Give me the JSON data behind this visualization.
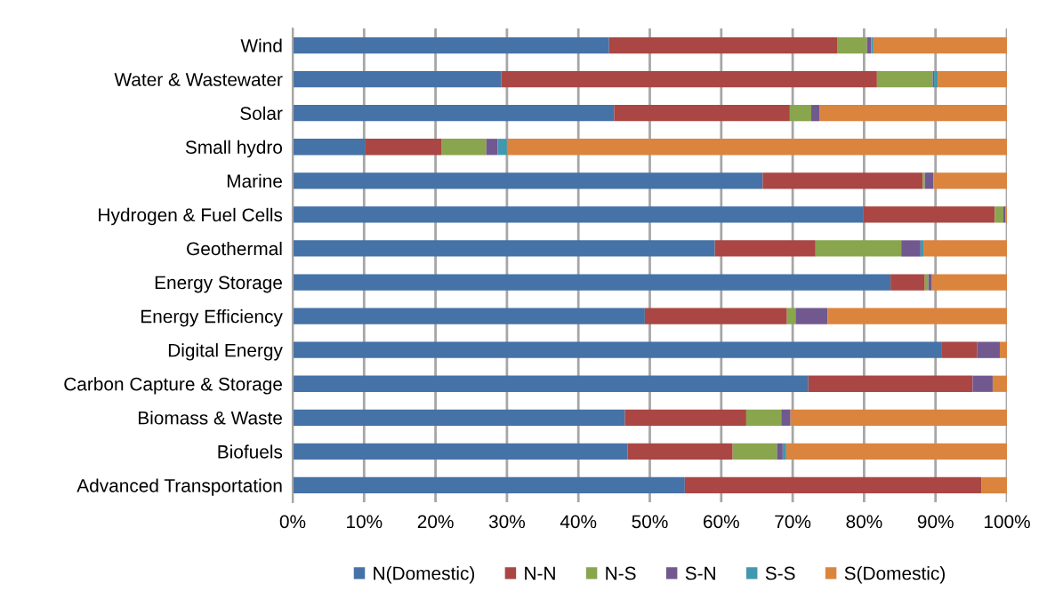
{
  "chart_data": {
    "type": "bar",
    "orientation": "horizontal",
    "stacked": true,
    "categories": [
      "Wind",
      "Water & Wastewater",
      "Solar",
      "Small hydro",
      "Marine",
      "Hydrogen & Fuel Cells",
      "Geothermal",
      "Energy Storage",
      "Energy Efficiency",
      "Digital Energy",
      "Carbon Capture & Storage",
      "Biomass & Waste",
      "Biofuels",
      "Advanced Transportation"
    ],
    "series": [
      {
        "name": "N(Domestic)",
        "color": "#4572a7",
        "values": [
          44.3,
          29.2,
          45.0,
          10.2,
          65.8,
          79.9,
          59.1,
          83.7,
          49.3,
          90.8,
          72.2,
          46.5,
          46.9,
          54.9
        ]
      },
      {
        "name": "N-N",
        "color": "#aa4643",
        "values": [
          32.0,
          52.6,
          24.6,
          10.6,
          22.4,
          18.4,
          14.1,
          4.8,
          19.9,
          5.0,
          23.0,
          17.0,
          14.7,
          41.5
        ]
      },
      {
        "name": "N-S",
        "color": "#89a54e",
        "values": [
          4.1,
          7.8,
          3.0,
          6.3,
          0.3,
          1.2,
          12.0,
          0.5,
          1.2,
          0,
          0,
          4.9,
          6.2,
          0
        ]
      },
      {
        "name": "S-N",
        "color": "#71588f",
        "values": [
          0.6,
          0.2,
          1.2,
          1.6,
          1.2,
          0.3,
          2.7,
          0.5,
          4.5,
          3.2,
          2.8,
          1.3,
          0.8,
          0
        ]
      },
      {
        "name": "S-S",
        "color": "#4198af",
        "values": [
          0.3,
          0.5,
          0,
          1.3,
          0,
          0,
          0.4,
          0,
          0,
          0,
          0,
          0,
          0.5,
          0
        ]
      },
      {
        "name": "S(Domestic)",
        "color": "#db843d",
        "values": [
          18.7,
          9.7,
          26.2,
          70.0,
          10.3,
          0.2,
          11.7,
          10.5,
          25.1,
          1.0,
          2.0,
          30.3,
          30.9,
          3.6
        ]
      }
    ],
    "xlim": [
      0,
      100
    ],
    "xticks": [
      {
        "value": 0,
        "label": "0%"
      },
      {
        "value": 10,
        "label": "10%"
      },
      {
        "value": 20,
        "label": "20%"
      },
      {
        "value": 30,
        "label": "30%"
      },
      {
        "value": 40,
        "label": "40%"
      },
      {
        "value": 50,
        "label": "50%"
      },
      {
        "value": 60,
        "label": "60%"
      },
      {
        "value": 70,
        "label": "70%"
      },
      {
        "value": 80,
        "label": "80%"
      },
      {
        "value": 90,
        "label": "90%"
      },
      {
        "value": 100,
        "label": "100%"
      }
    ],
    "grid": "x",
    "legend": "bottom"
  }
}
